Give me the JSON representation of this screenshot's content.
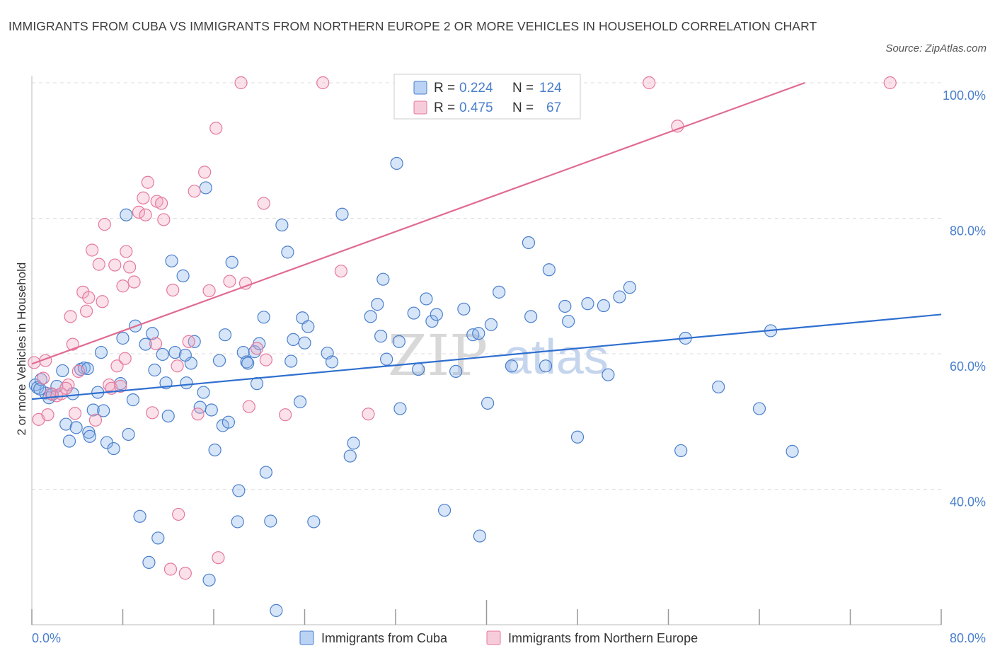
{
  "title": "IMMIGRANTS FROM CUBA VS IMMIGRANTS FROM NORTHERN EUROPE 2 OR MORE VEHICLES IN HOUSEHOLD CORRELATION CHART",
  "source": "Source: ZipAtlas.com",
  "watermark": {
    "zip": "ZIP",
    "atlas": "atlas"
  },
  "colors": {
    "cuba": "#4a7fcc",
    "cuba_fill": "rgba(140,180,235,0.35)",
    "cuba_line": "#2f6fcf",
    "neu": "#e5799c",
    "neu_fill": "rgba(240,170,195,0.35)",
    "neu_line": "#e06b93",
    "grid": "#dddddd",
    "tick_text": "#4a7fcc"
  },
  "legend": {
    "rows": [
      {
        "r_label": "R = ",
        "r_value": "0.224",
        "n_label": "N = ",
        "n_value": "124"
      },
      {
        "r_label": "R = ",
        "r_value": "0.475",
        "n_label": "N = ",
        "n_value": "67"
      }
    ]
  },
  "chart_data": {
    "type": "scatter",
    "ylabel": "2 or more Vehicles in Household",
    "xlim": [
      0,
      80
    ],
    "ylim": [
      20,
      100
    ],
    "x_ticks": [
      {
        "v": 0,
        "label": "0.0%"
      },
      {
        "v": 80,
        "label": "80.0%"
      }
    ],
    "y_ticks": [
      {
        "v": 40,
        "label": "40.0%"
      },
      {
        "v": 60,
        "label": "60.0%"
      },
      {
        "v": 80,
        "label": "80.0%"
      },
      {
        "v": 100,
        "label": "100.0%"
      }
    ],
    "series": [
      {
        "name": "Immigrants from Cuba",
        "key": "cuba",
        "trend": {
          "x0": 0,
          "y0": 53.3,
          "x1": 80,
          "y1": 65.8
        },
        "points": [
          [
            0.3,
            55.4
          ],
          [
            0.5,
            55.0
          ],
          [
            0.8,
            56.2
          ],
          [
            1.2,
            54.2
          ],
          [
            1.5,
            53.5
          ],
          [
            1.8,
            54.0
          ],
          [
            2.2,
            55.2
          ],
          [
            2.7,
            57.5
          ],
          [
            3.0,
            49.6
          ],
          [
            3.3,
            47.1
          ],
          [
            3.6,
            54.1
          ],
          [
            3.9,
            49.1
          ],
          [
            4.3,
            57.7
          ],
          [
            4.6,
            57.9
          ],
          [
            5.0,
            48.4
          ],
          [
            5.1,
            47.8
          ],
          [
            5.4,
            51.7
          ],
          [
            5.8,
            54.3
          ],
          [
            6.1,
            60.2
          ],
          [
            6.3,
            51.6
          ],
          [
            6.6,
            46.9
          ],
          [
            7.2,
            46.0
          ],
          [
            7.8,
            55.6
          ],
          [
            8.0,
            62.3
          ],
          [
            8.3,
            80.5
          ],
          [
            8.5,
            48.1
          ],
          [
            8.9,
            53.2
          ],
          [
            9.1,
            64.1
          ],
          [
            9.5,
            36.0
          ],
          [
            10.0,
            61.4
          ],
          [
            10.3,
            29.2
          ],
          [
            10.6,
            63.0
          ],
          [
            10.8,
            57.6
          ],
          [
            11.1,
            32.8
          ],
          [
            11.5,
            59.9
          ],
          [
            11.8,
            55.7
          ],
          [
            12.0,
            50.8
          ],
          [
            12.3,
            73.7
          ],
          [
            12.6,
            60.2
          ],
          [
            13.3,
            71.5
          ],
          [
            13.6,
            55.7
          ],
          [
            14.0,
            58.6
          ],
          [
            14.3,
            61.8
          ],
          [
            14.8,
            52.1
          ],
          [
            15.1,
            54.3
          ],
          [
            15.3,
            84.5
          ],
          [
            15.6,
            26.6
          ],
          [
            15.8,
            51.7
          ],
          [
            16.1,
            45.8
          ],
          [
            16.5,
            59.0
          ],
          [
            16.8,
            49.4
          ],
          [
            17.0,
            62.8
          ],
          [
            17.3,
            49.9
          ],
          [
            17.6,
            73.5
          ],
          [
            18.1,
            35.2
          ],
          [
            18.2,
            39.8
          ],
          [
            18.6,
            60.2
          ],
          [
            18.9,
            58.8
          ],
          [
            19.0,
            58.6
          ],
          [
            19.6,
            60.3
          ],
          [
            19.8,
            55.6
          ],
          [
            20.0,
            61.5
          ],
          [
            20.4,
            65.4
          ],
          [
            20.6,
            42.5
          ],
          [
            21.0,
            35.3
          ],
          [
            21.5,
            22.1
          ],
          [
            22.0,
            79.0
          ],
          [
            22.5,
            75.0
          ],
          [
            22.8,
            58.9
          ],
          [
            23.0,
            62.1
          ],
          [
            23.6,
            52.9
          ],
          [
            23.8,
            65.3
          ],
          [
            24.0,
            61.6
          ],
          [
            24.3,
            64.0
          ],
          [
            24.8,
            35.2
          ],
          [
            26.0,
            60.1
          ],
          [
            26.4,
            58.8
          ],
          [
            27.3,
            80.6
          ],
          [
            28.0,
            44.9
          ],
          [
            28.3,
            46.8
          ],
          [
            29.8,
            65.5
          ],
          [
            30.4,
            67.3
          ],
          [
            30.9,
            71.0
          ],
          [
            30.7,
            62.6
          ],
          [
            31.2,
            59.2
          ],
          [
            32.4,
            51.9
          ],
          [
            32.3,
            61.8
          ],
          [
            33.6,
            66.0
          ],
          [
            34.0,
            57.7
          ],
          [
            34.7,
            68.1
          ],
          [
            35.2,
            64.8
          ],
          [
            35.6,
            65.8
          ],
          [
            36.3,
            36.9
          ],
          [
            37.3,
            57.4
          ],
          [
            38.0,
            66.6
          ],
          [
            38.8,
            62.8
          ],
          [
            39.3,
            63.0
          ],
          [
            39.4,
            33.1
          ],
          [
            40.1,
            52.7
          ],
          [
            40.4,
            64.3
          ],
          [
            41.1,
            69.1
          ],
          [
            42.2,
            58.2
          ],
          [
            43.7,
            76.4
          ],
          [
            43.9,
            65.5
          ],
          [
            45.2,
            58.2
          ],
          [
            45.5,
            72.4
          ],
          [
            46.9,
            67.0
          ],
          [
            47.2,
            64.8
          ],
          [
            48.0,
            47.7
          ],
          [
            48.9,
            67.4
          ],
          [
            50.3,
            67.1
          ],
          [
            50.7,
            56.9
          ],
          [
            51.7,
            68.4
          ],
          [
            52.6,
            69.8
          ],
          [
            57.1,
            45.7
          ],
          [
            57.5,
            62.3
          ],
          [
            60.4,
            55.1
          ],
          [
            64.0,
            51.9
          ],
          [
            65.0,
            63.4
          ],
          [
            66.9,
            45.6
          ],
          [
            32.1,
            88.1
          ],
          [
            0.7,
            54.8
          ],
          [
            4.9,
            57.8
          ],
          [
            13.5,
            59.8
          ]
        ]
      },
      {
        "name": "Immigrants from Northern Europe",
        "key": "neu",
        "trend": {
          "x0": 0,
          "y0": 58.5,
          "x1": 68,
          "y1": 100
        },
        "points": [
          [
            0.2,
            58.7
          ],
          [
            0.6,
            50.3
          ],
          [
            1.0,
            56.4
          ],
          [
            1.2,
            59.0
          ],
          [
            1.4,
            51.0
          ],
          [
            1.7,
            54.1
          ],
          [
            2.2,
            53.8
          ],
          [
            2.6,
            54.1
          ],
          [
            3.2,
            55.4
          ],
          [
            3.4,
            65.5
          ],
          [
            3.6,
            61.4
          ],
          [
            3.8,
            51.2
          ],
          [
            4.1,
            57.4
          ],
          [
            4.5,
            69.1
          ],
          [
            4.8,
            66.3
          ],
          [
            5.0,
            68.3
          ],
          [
            5.3,
            75.3
          ],
          [
            5.6,
            50.2
          ],
          [
            5.9,
            73.2
          ],
          [
            6.2,
            67.7
          ],
          [
            6.4,
            79.1
          ],
          [
            6.8,
            55.4
          ],
          [
            7.0,
            54.9
          ],
          [
            7.3,
            73.1
          ],
          [
            7.5,
            58.2
          ],
          [
            7.8,
            55.2
          ],
          [
            8.0,
            70.0
          ],
          [
            8.3,
            75.1
          ],
          [
            8.6,
            72.8
          ],
          [
            9.0,
            70.6
          ],
          [
            9.4,
            80.9
          ],
          [
            9.8,
            83.0
          ],
          [
            10.0,
            80.5
          ],
          [
            10.2,
            85.3
          ],
          [
            10.6,
            51.3
          ],
          [
            11.0,
            82.5
          ],
          [
            11.4,
            82.2
          ],
          [
            11.6,
            79.8
          ],
          [
            12.2,
            28.2
          ],
          [
            12.4,
            69.4
          ],
          [
            12.8,
            58.2
          ],
          [
            12.9,
            36.3
          ],
          [
            13.5,
            27.6
          ],
          [
            13.8,
            61.8
          ],
          [
            14.3,
            84.0
          ],
          [
            14.6,
            51.1
          ],
          [
            15.2,
            86.8
          ],
          [
            15.6,
            69.3
          ],
          [
            16.2,
            93.3
          ],
          [
            16.4,
            29.9
          ],
          [
            17.4,
            70.7
          ],
          [
            18.4,
            100.0
          ],
          [
            18.8,
            70.4
          ],
          [
            19.1,
            52.2
          ],
          [
            19.8,
            60.8
          ],
          [
            20.4,
            82.2
          ],
          [
            20.6,
            59.1
          ],
          [
            22.3,
            51.0
          ],
          [
            25.6,
            100.0
          ],
          [
            27.2,
            72.2
          ],
          [
            29.6,
            51.1
          ],
          [
            54.3,
            100.0
          ],
          [
            56.8,
            93.6
          ],
          [
            75.5,
            100.0
          ],
          [
            3.0,
            54.9
          ],
          [
            8.2,
            59.3
          ],
          [
            10.9,
            61.5
          ]
        ]
      }
    ]
  }
}
